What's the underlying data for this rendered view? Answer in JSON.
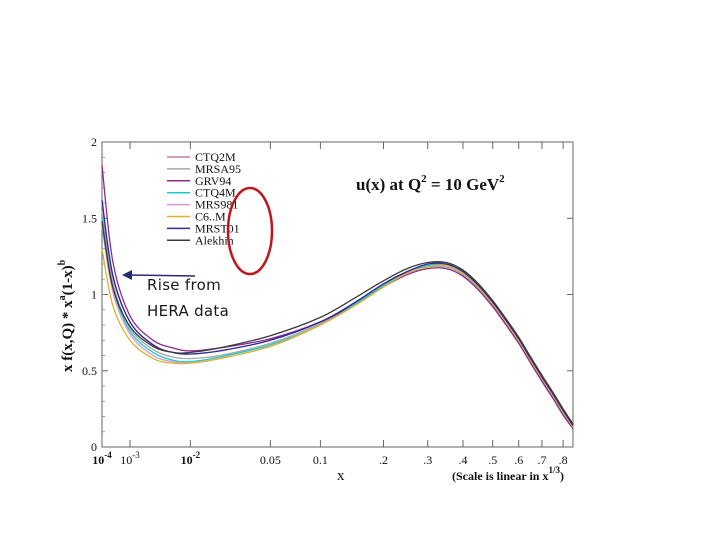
{
  "chart_data": {
    "type": "line",
    "title": "u(x) at Q² = 10 GeV²",
    "title_parts": {
      "main": "u(x) at Q",
      "sup1": "2",
      "mid": " = 10 GeV",
      "sup2": "2"
    },
    "xlabel": "x",
    "ylabel": "x f(x,Q) * x^a (1-x)^b",
    "ylabel_parts": {
      "main": "x f(x,Q) * x",
      "sup_a": "a",
      "mid": "(1-x)",
      "sup_b": "b"
    },
    "scale_note": "(Scale is linear in x^1/3)",
    "scale_note_parts": {
      "main": "(Scale is linear in x",
      "sup": "1/3",
      "end": ")"
    },
    "x_scale": "cube-root",
    "xlim": [
      0.0001,
      0.85
    ],
    "ylim": [
      0,
      2
    ],
    "y_ticks": [
      0,
      0.5,
      1,
      1.5,
      2
    ],
    "y_tick_labels": [
      "0",
      "0.5",
      "1",
      "1.5",
      "2"
    ],
    "x_ticks": [
      {
        "value": 0.0001,
        "base": "10",
        "exp": "-4",
        "bold": true
      },
      {
        "value": 0.001,
        "base": "10",
        "exp": "-3",
        "bold": false
      },
      {
        "value": 0.01,
        "base": "10",
        "exp": "-2",
        "bold": true
      },
      {
        "value": 0.05,
        "label": "0.05"
      },
      {
        "value": 0.1,
        "label": "0.1"
      },
      {
        "value": 0.2,
        "label": ".2"
      },
      {
        "value": 0.3,
        "label": ".3"
      },
      {
        "value": 0.4,
        "label": ".4"
      },
      {
        "value": 0.5,
        "label": ".5"
      },
      {
        "value": 0.6,
        "label": ".6"
      },
      {
        "value": 0.7,
        "label": ".7"
      },
      {
        "value": 0.8,
        "label": ".8"
      }
    ],
    "legend_position": "top-left",
    "x": [
      0.0001,
      0.0003,
      0.001,
      0.003,
      0.006,
      0.01,
      0.02,
      0.05,
      0.1,
      0.15,
      0.2,
      0.25,
      0.3,
      0.35,
      0.4,
      0.45,
      0.5,
      0.55,
      0.6,
      0.65,
      0.7,
      0.75,
      0.8,
      0.85
    ],
    "series": [
      {
        "name": "CTQ2M",
        "color": "#c07ab0",
        "values": [
          1.6,
          1.12,
          0.82,
          0.67,
          0.62,
          0.61,
          0.63,
          0.7,
          0.82,
          0.95,
          1.07,
          1.15,
          1.19,
          1.19,
          1.14,
          1.05,
          0.94,
          0.82,
          0.7,
          0.57,
          0.45,
          0.34,
          0.23,
          0.13
        ]
      },
      {
        "name": "MRSA95",
        "color": "#a7a7a7",
        "values": [
          1.55,
          1.08,
          0.78,
          0.64,
          0.59,
          0.58,
          0.6,
          0.68,
          0.81,
          0.94,
          1.06,
          1.14,
          1.18,
          1.18,
          1.13,
          1.04,
          0.93,
          0.81,
          0.69,
          0.56,
          0.44,
          0.33,
          0.22,
          0.13
        ]
      },
      {
        "name": "GRV94",
        "color": "#8e2a8e",
        "values": [
          1.85,
          1.22,
          0.86,
          0.7,
          0.65,
          0.63,
          0.65,
          0.71,
          0.82,
          0.94,
          1.05,
          1.13,
          1.17,
          1.17,
          1.12,
          1.03,
          0.92,
          0.8,
          0.68,
          0.55,
          0.43,
          0.32,
          0.21,
          0.12
        ]
      },
      {
        "name": "CTQ4M",
        "color": "#1fc8c8",
        "values": [
          1.5,
          1.05,
          0.76,
          0.62,
          0.57,
          0.56,
          0.59,
          0.67,
          0.8,
          0.94,
          1.06,
          1.15,
          1.19,
          1.2,
          1.15,
          1.06,
          0.95,
          0.83,
          0.71,
          0.58,
          0.46,
          0.35,
          0.24,
          0.14
        ]
      },
      {
        "name": "MRS981",
        "color": "#d59ad5",
        "values": [
          1.45,
          1.02,
          0.74,
          0.6,
          0.56,
          0.55,
          0.58,
          0.66,
          0.8,
          0.93,
          1.05,
          1.14,
          1.18,
          1.19,
          1.14,
          1.05,
          0.94,
          0.82,
          0.7,
          0.57,
          0.45,
          0.34,
          0.23,
          0.13
        ]
      },
      {
        "name": "C6..M",
        "color": "#e0b028",
        "values": [
          1.3,
          0.93,
          0.7,
          0.58,
          0.55,
          0.55,
          0.58,
          0.66,
          0.8,
          0.93,
          1.05,
          1.14,
          1.18,
          1.19,
          1.14,
          1.05,
          0.94,
          0.82,
          0.7,
          0.57,
          0.45,
          0.34,
          0.23,
          0.13
        ]
      },
      {
        "name": "MRST01",
        "color": "#2a2a9a",
        "values": [
          1.62,
          1.13,
          0.82,
          0.67,
          0.62,
          0.61,
          0.63,
          0.7,
          0.82,
          0.95,
          1.07,
          1.15,
          1.2,
          1.2,
          1.15,
          1.06,
          0.95,
          0.83,
          0.71,
          0.58,
          0.46,
          0.35,
          0.24,
          0.14
        ]
      },
      {
        "name": "Alekhin",
        "color": "#3a3a3a",
        "values": [
          1.48,
          1.05,
          0.79,
          0.66,
          0.62,
          0.62,
          0.65,
          0.73,
          0.85,
          0.98,
          1.09,
          1.17,
          1.21,
          1.21,
          1.16,
          1.07,
          0.96,
          0.84,
          0.72,
          0.59,
          0.47,
          0.36,
          0.25,
          0.15
        ]
      }
    ],
    "annotations": [
      {
        "text_lines": [
          "Rise from",
          "HERA data"
        ],
        "arrow_to": {
          "x": 0.00013,
          "y": 1.12
        },
        "arrow_color": "#2a2a7a"
      },
      {
        "shape": "ellipse",
        "around": "legend-entries-right",
        "color": "#c0141e"
      }
    ]
  },
  "callout": {
    "line1": "Rise from",
    "line2": "HERA data"
  }
}
